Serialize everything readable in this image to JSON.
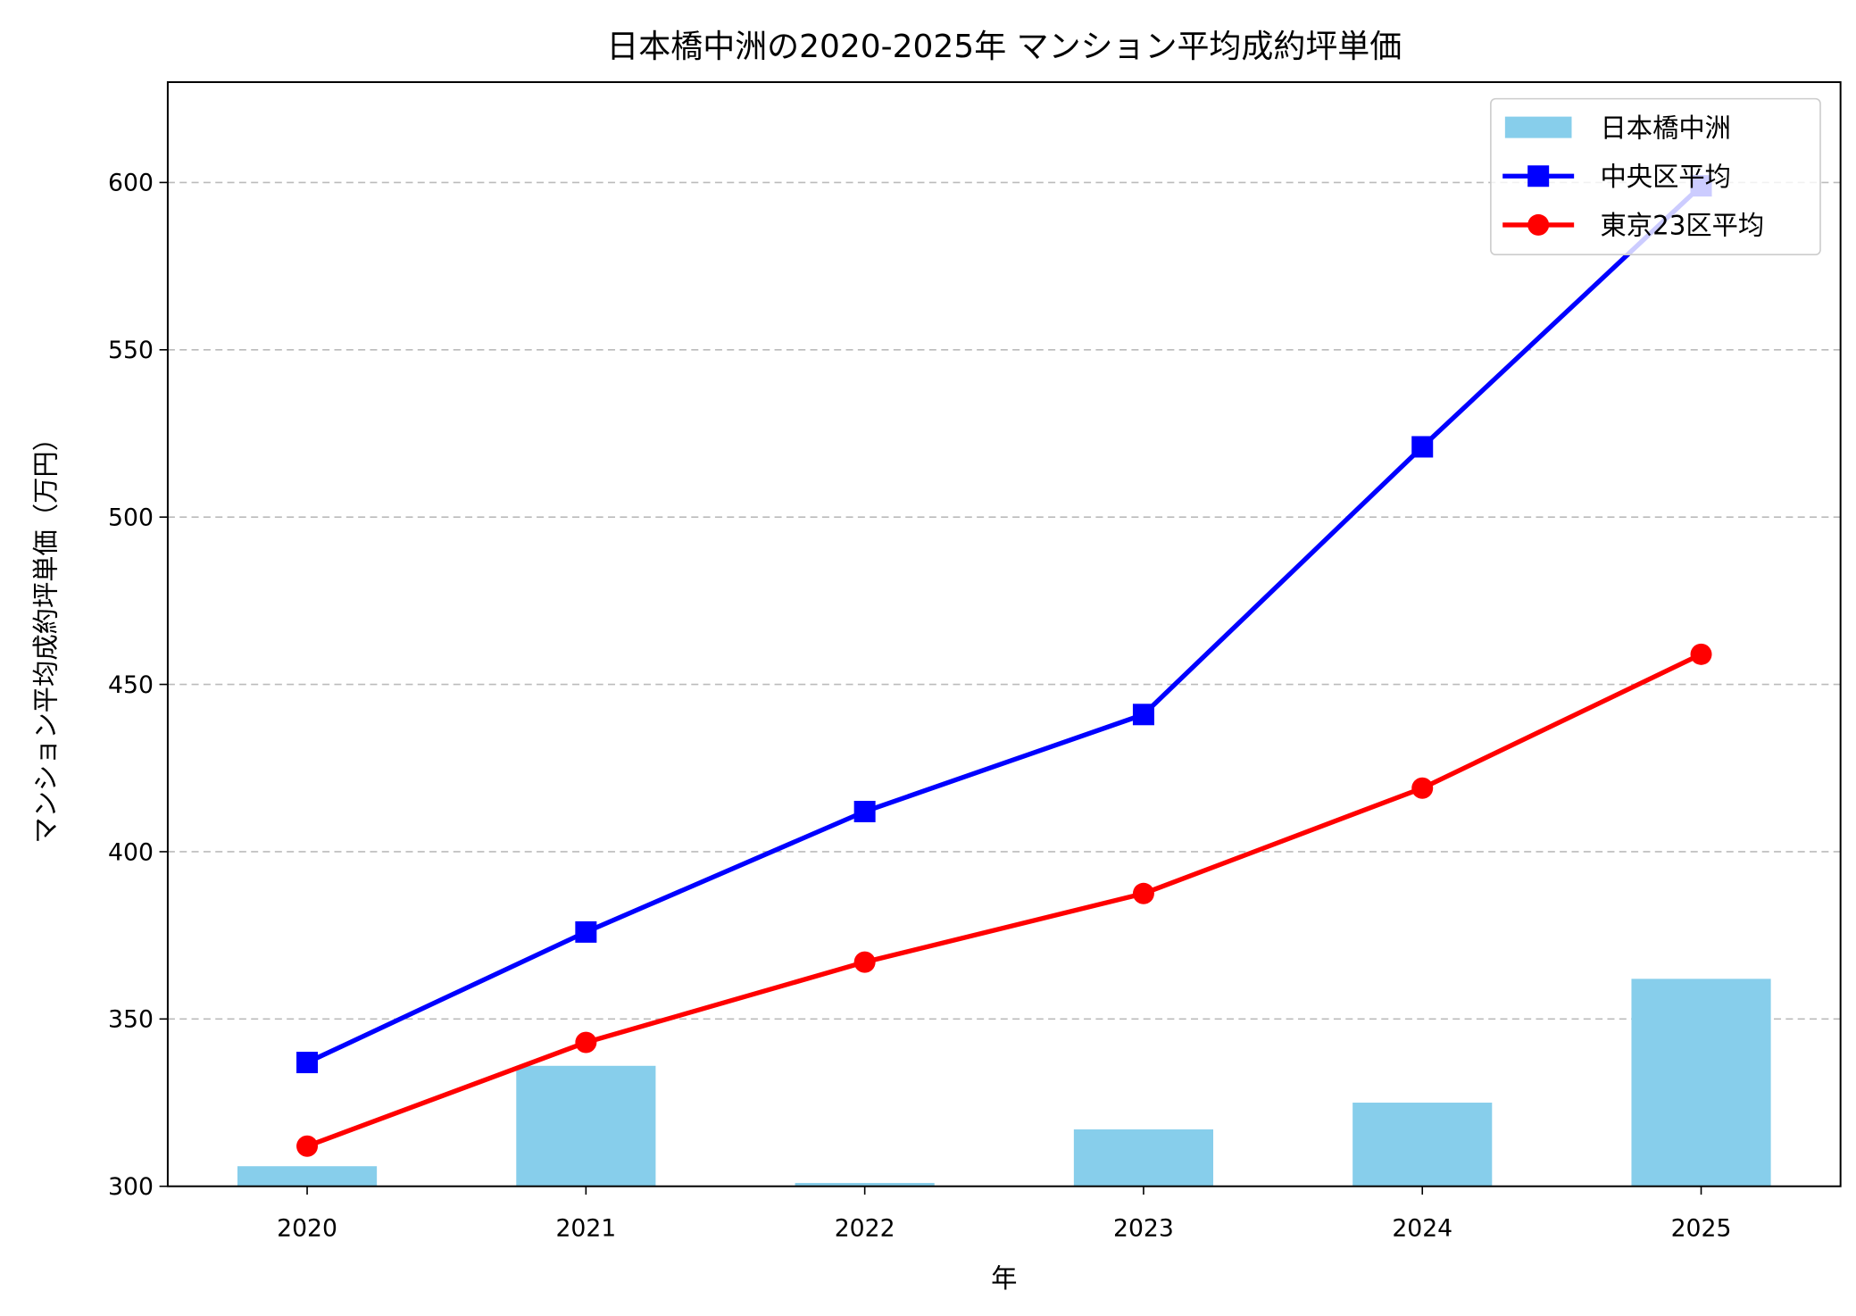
{
  "chart_data": {
    "type": "bar+line",
    "title": "日本橋中洲の2020-2025年 マンション平均成約坪単価",
    "xlabel": "年",
    "ylabel": "マンション平均成約坪単価（万円）",
    "categories": [
      "2020",
      "2021",
      "2022",
      "2023",
      "2024",
      "2025"
    ],
    "xlim": [
      2019.5,
      2025.5
    ],
    "ylim": [
      300,
      630
    ],
    "yticks": [
      300,
      350,
      400,
      450,
      500,
      550,
      600
    ],
    "grid": "y-dashed",
    "legend_position": "top-right",
    "series": [
      {
        "name": "日本橋中洲",
        "type": "bar",
        "color": "#87ceeb",
        "values": [
          306,
          336,
          301,
          317,
          325,
          362
        ]
      },
      {
        "name": "中央区平均",
        "type": "line",
        "marker": "square",
        "color": "#0000ff",
        "values": [
          337,
          376,
          412,
          441,
          521,
          599
        ]
      },
      {
        "name": "東京23区平均",
        "type": "line",
        "marker": "circle",
        "color": "#ff0000",
        "values": [
          312,
          343,
          367,
          387.5,
          419,
          459
        ]
      }
    ]
  }
}
